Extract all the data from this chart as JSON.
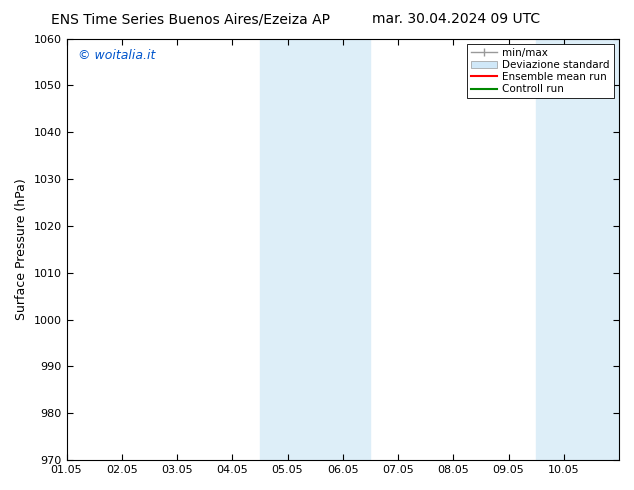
{
  "title_left": "ENS Time Series Buenos Aires/Ezeiza AP",
  "title_right": "mar. 30.04.2024 09 UTC",
  "ylabel": "Surface Pressure (hPa)",
  "ylim": [
    970,
    1060
  ],
  "yticks": [
    970,
    980,
    990,
    1000,
    1010,
    1020,
    1030,
    1040,
    1050,
    1060
  ],
  "xlim_start": 0.0,
  "xlim_end": 10.0,
  "xtick_positions": [
    0,
    1,
    2,
    3,
    4,
    5,
    6,
    7,
    8,
    9
  ],
  "xtick_labels": [
    "01.05",
    "02.05",
    "03.05",
    "04.05",
    "05.05",
    "06.05",
    "07.05",
    "08.05",
    "09.05",
    "10.05"
  ],
  "shaded_regions": [
    {
      "x_start": 3.5,
      "x_end": 5.5,
      "color": "#ddeef8"
    },
    {
      "x_start": 8.5,
      "x_end": 10.0,
      "color": "#ddeef8"
    }
  ],
  "watermark_text": "© woitalia.it",
  "watermark_color": "#0055cc",
  "background_color": "#ffffff",
  "legend_entries": [
    {
      "label": "min/max",
      "color": "#999999",
      "lw": 1.0,
      "style": "minmax"
    },
    {
      "label": "Deviazione standard",
      "color": "#d0e8f8",
      "lw": 8,
      "style": "fill"
    },
    {
      "label": "Ensemble mean run",
      "color": "#ff0000",
      "lw": 1.5,
      "style": "line"
    },
    {
      "label": "Controll run",
      "color": "#008800",
      "lw": 1.5,
      "style": "line"
    }
  ],
  "title_fontsize": 10,
  "axis_label_fontsize": 9,
  "tick_fontsize": 8,
  "legend_fontsize": 7.5
}
